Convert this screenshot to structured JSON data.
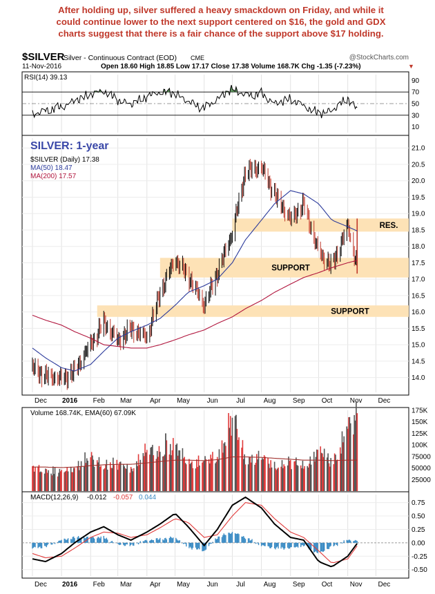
{
  "headline": [
    "After holding up, silver suffered a heavy smackdown on Friday, and while it",
    "could continue lower to the next support centered on $16, the gold and GDX",
    "charts suggest that there is a fair chance of the support above $17 holding."
  ],
  "header": {
    "symbol": "$SILVER",
    "description": "Silver - Continuous Contract (EOD)",
    "exchange": "CME",
    "credit": "@StockCharts.com",
    "date": "11-Nov-2016",
    "quote": "Open 18.60  High 18.85  Low 17.17  Close 17.38  Volume 168.7K  Chg -1.35 (-7.23%)"
  },
  "colors": {
    "price_up": "#000000",
    "price_down": "#c0392b",
    "ma50": "#2b3a9b",
    "ma200": "#b0143c",
    "zone": "#fde2b6",
    "rsi_overbought": "#3d7a3d",
    "rsi_oversold": "#7a4a4a",
    "volume_up": "#555555",
    "volume_down": "#e03a3a",
    "ema60": "#a0302c",
    "macd": "#000000",
    "signal": "#e03a3a",
    "histogram": "#3a8bc4"
  },
  "chart_data": [
    {
      "type": "line",
      "panel": "rsi",
      "legend": "RSI(14) 39.13",
      "ylim": [
        0,
        100
      ],
      "yticks": [
        10,
        30,
        50,
        70,
        90
      ],
      "reference_lines": [
        30,
        50,
        70
      ],
      "x": [
        "2015-12-01",
        "2015-12-15",
        "2016-01-01",
        "2016-01-15",
        "2016-02-01",
        "2016-02-15",
        "2016-03-01",
        "2016-03-15",
        "2016-04-01",
        "2016-04-15",
        "2016-05-01",
        "2016-05-15",
        "2016-06-01",
        "2016-06-15",
        "2016-07-01",
        "2016-07-15",
        "2016-08-01",
        "2016-08-15",
        "2016-09-01",
        "2016-09-15",
        "2016-10-01",
        "2016-10-15",
        "2016-11-01",
        "2016-11-11"
      ],
      "values": [
        31,
        38,
        44,
        55,
        66,
        72,
        56,
        49,
        62,
        70,
        68,
        53,
        42,
        58,
        76,
        64,
        67,
        50,
        58,
        46,
        33,
        38,
        59,
        39
      ]
    },
    {
      "type": "line",
      "panel": "price",
      "title": "SILVER: 1-year",
      "legend": [
        "$SILVER (Daily) 17.38",
        "MA(50) 18.47",
        "MA(200) 17.57"
      ],
      "ylim": [
        13.55,
        21.3
      ],
      "yticks": [
        14.0,
        14.5,
        15.0,
        15.5,
        16.0,
        16.5,
        17.0,
        17.5,
        18.0,
        18.5,
        19.0,
        19.5,
        20.0,
        20.5,
        21.0
      ],
      "x_tick_labels": [
        "Dec",
        "2016",
        "Feb",
        "Mar",
        "Apr",
        "May",
        "Jun",
        "Jul",
        "Aug",
        "Sep",
        "Oct",
        "Nov",
        "Dec"
      ],
      "x": [
        "2015-12-01",
        "2015-12-15",
        "2016-01-01",
        "2016-01-15",
        "2016-02-01",
        "2016-02-15",
        "2016-03-01",
        "2016-03-15",
        "2016-04-01",
        "2016-04-15",
        "2016-05-01",
        "2016-05-15",
        "2016-06-01",
        "2016-06-15",
        "2016-07-01",
        "2016-07-15",
        "2016-08-01",
        "2016-08-15",
        "2016-09-01",
        "2016-09-15",
        "2016-10-01",
        "2016-10-15",
        "2016-11-01",
        "2016-11-11"
      ],
      "series": [
        {
          "name": "$SILVER (Daily)",
          "values": [
            14.3,
            14.05,
            13.95,
            14.2,
            15.0,
            15.7,
            15.1,
            15.5,
            15.2,
            16.6,
            17.6,
            17.1,
            16.2,
            17.2,
            18.4,
            20.3,
            20.4,
            19.6,
            18.8,
            19.3,
            17.8,
            17.4,
            18.6,
            17.38
          ]
        },
        {
          "name": "MA(50)",
          "values": [
            14.9,
            14.6,
            14.3,
            14.2,
            14.4,
            14.8,
            15.2,
            15.4,
            15.6,
            15.8,
            16.2,
            16.6,
            16.8,
            17.0,
            17.5,
            18.2,
            18.8,
            19.3,
            19.7,
            19.6,
            19.3,
            18.8,
            18.6,
            18.47
          ]
        },
        {
          "name": "MA(200)",
          "values": [
            15.9,
            15.75,
            15.6,
            15.4,
            15.2,
            15.0,
            14.95,
            14.9,
            14.9,
            15.0,
            15.15,
            15.3,
            15.45,
            15.65,
            15.85,
            16.1,
            16.35,
            16.6,
            16.85,
            17.05,
            17.2,
            17.35,
            17.5,
            17.57
          ]
        }
      ],
      "annotations": [
        {
          "label": "RES.",
          "range": [
            18.45,
            18.85
          ]
        },
        {
          "label": "SUPPORT",
          "range": [
            17.05,
            17.65
          ]
        },
        {
          "label": "SUPPORT",
          "range": [
            15.85,
            16.2
          ]
        }
      ]
    },
    {
      "type": "bar",
      "panel": "volume",
      "legend": "Volume 168.74K, EMA(60) 67.09K",
      "ylim": [
        0,
        175000
      ],
      "ytick_labels": [
        "25000",
        "50000",
        "75000",
        "100K",
        "125K",
        "150K",
        "175K"
      ],
      "yticks": [
        25000,
        50000,
        75000,
        100000,
        125000,
        150000,
        175000
      ],
      "x": [
        "2015-12-01",
        "2015-12-15",
        "2016-01-01",
        "2016-01-15",
        "2016-02-01",
        "2016-02-15",
        "2016-03-01",
        "2016-03-15",
        "2016-04-01",
        "2016-04-15",
        "2016-05-01",
        "2016-05-15",
        "2016-06-01",
        "2016-06-15",
        "2016-07-01",
        "2016-07-15",
        "2016-08-01",
        "2016-08-15",
        "2016-09-01",
        "2016-09-15",
        "2016-10-01",
        "2016-10-15",
        "2016-11-01",
        "2016-11-11"
      ],
      "series": [
        {
          "name": "Volume",
          "values": [
            55000,
            50000,
            42000,
            58000,
            75000,
            65000,
            60000,
            55000,
            90000,
            95000,
            100000,
            70000,
            65000,
            85000,
            165000,
            80000,
            75000,
            60000,
            65000,
            60000,
            90000,
            70000,
            140000,
            168740
          ]
        },
        {
          "name": "EMA(60)",
          "values": [
            52000,
            52000,
            51000,
            52000,
            55000,
            57000,
            58000,
            58000,
            61000,
            64000,
            67000,
            67000,
            66000,
            68000,
            74000,
            74000,
            73000,
            71000,
            69000,
            67000,
            67000,
            66000,
            67000,
            67090
          ]
        }
      ]
    },
    {
      "type": "line",
      "panel": "macd",
      "legend": [
        "MACD(12,26,9)",
        "-0.012",
        "-0.057",
        "0.044"
      ],
      "ylim": [
        -0.62,
        0.9
      ],
      "yticks": [
        -0.5,
        -0.25,
        0.0,
        0.25,
        0.5,
        0.75
      ],
      "x_tick_labels": [
        "Dec",
        "2016",
        "Feb",
        "Mar",
        "Apr",
        "May",
        "Jun",
        "Jul",
        "Aug",
        "Sep",
        "Oct",
        "Nov",
        "Dec"
      ],
      "x": [
        "2015-12-01",
        "2015-12-15",
        "2016-01-01",
        "2016-01-15",
        "2016-02-01",
        "2016-02-15",
        "2016-03-01",
        "2016-03-15",
        "2016-04-01",
        "2016-04-15",
        "2016-05-01",
        "2016-05-15",
        "2016-06-01",
        "2016-06-15",
        "2016-07-01",
        "2016-07-15",
        "2016-08-01",
        "2016-08-15",
        "2016-09-01",
        "2016-09-15",
        "2016-10-01",
        "2016-10-15",
        "2016-11-01",
        "2016-11-11"
      ],
      "series": [
        {
          "name": "MACD",
          "values": [
            -0.3,
            -0.35,
            -0.2,
            0.0,
            0.2,
            0.3,
            0.15,
            0.05,
            0.2,
            0.35,
            0.55,
            0.3,
            -0.05,
            0.25,
            0.7,
            0.85,
            0.65,
            0.35,
            0.1,
            0.05,
            -0.35,
            -0.45,
            -0.25,
            -0.012
          ]
        },
        {
          "name": "Signal",
          "values": [
            -0.2,
            -0.28,
            -0.25,
            -0.1,
            0.1,
            0.2,
            0.18,
            0.1,
            0.15,
            0.28,
            0.45,
            0.38,
            0.1,
            0.15,
            0.5,
            0.75,
            0.7,
            0.45,
            0.2,
            0.1,
            -0.15,
            -0.38,
            -0.3,
            -0.057
          ]
        },
        {
          "name": "Histogram",
          "values": [
            -0.1,
            -0.07,
            0.05,
            0.1,
            0.1,
            0.1,
            -0.03,
            -0.05,
            0.05,
            0.07,
            0.1,
            -0.08,
            -0.15,
            0.1,
            0.2,
            0.1,
            -0.05,
            -0.1,
            -0.1,
            -0.05,
            -0.2,
            -0.07,
            0.05,
            0.044
          ]
        }
      ]
    }
  ]
}
